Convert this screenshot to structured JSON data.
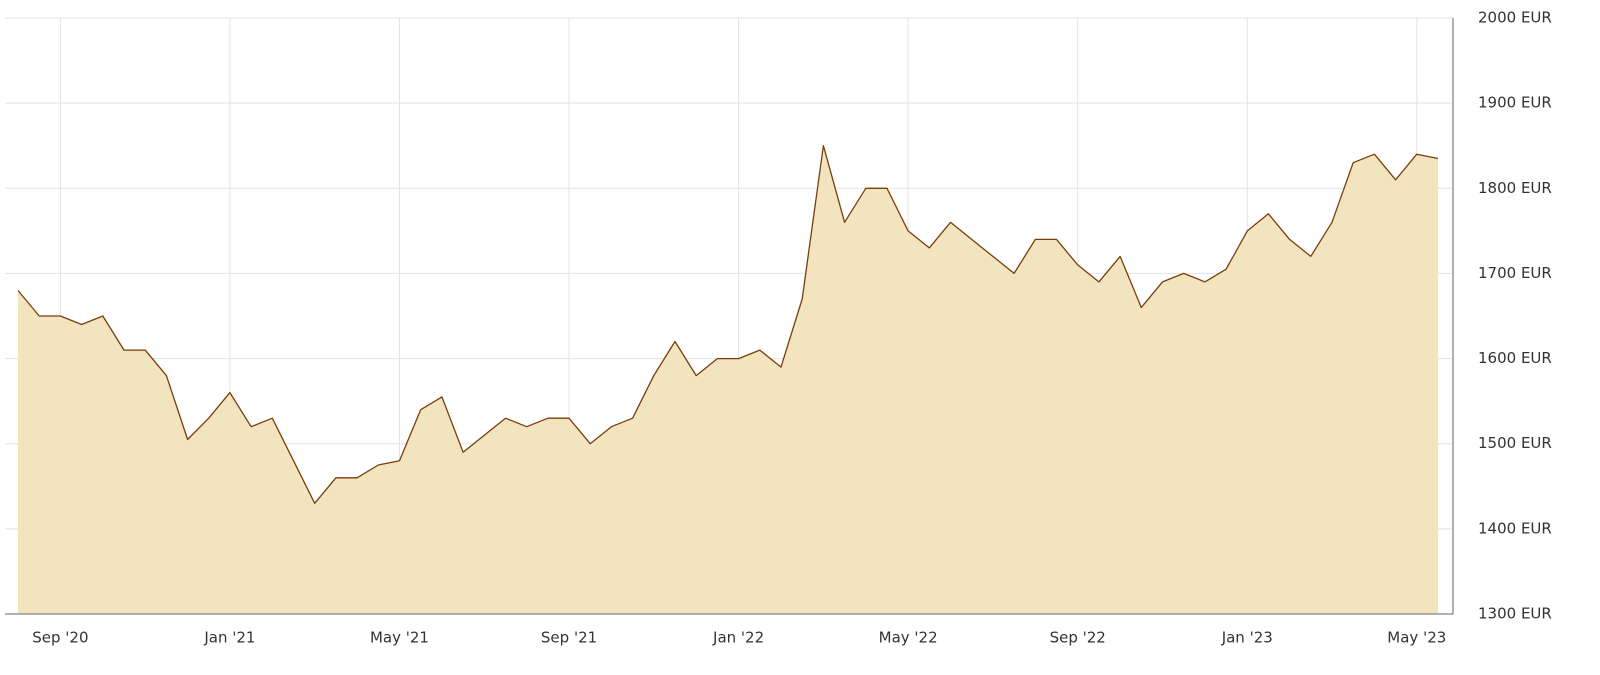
{
  "chart_data": {
    "type": "area",
    "categories": [
      null,
      null,
      "Sep '20",
      null,
      null,
      null,
      null,
      null,
      null,
      null,
      "Jan '21",
      null,
      null,
      null,
      null,
      null,
      null,
      null,
      "May '21",
      null,
      null,
      null,
      null,
      null,
      null,
      null,
      "Sep '21",
      null,
      null,
      null,
      null,
      null,
      null,
      null,
      "Jan '22",
      null,
      null,
      null,
      null,
      null,
      null,
      null,
      "May '22",
      null,
      null,
      null,
      null,
      null,
      null,
      null,
      "Sep '22",
      null,
      null,
      null,
      null,
      null,
      null,
      null,
      "Jan '23",
      null,
      null,
      null,
      null,
      null,
      null,
      null,
      "May '23",
      null
    ],
    "values": [
      1680,
      1650,
      1650,
      1640,
      1650,
      1610,
      1610,
      1580,
      1505,
      1530,
      1560,
      1520,
      1530,
      1480,
      1430,
      1460,
      1460,
      1475,
      1480,
      1540,
      1555,
      1490,
      1510,
      1530,
      1520,
      1530,
      1530,
      1500,
      1520,
      1530,
      1580,
      1620,
      1580,
      1600,
      1600,
      1610,
      1590,
      1670,
      1850,
      1760,
      1800,
      1800,
      1750,
      1730,
      1760,
      1740,
      1720,
      1700,
      1740,
      1740,
      1710,
      1690,
      1720,
      1660,
      1690,
      1700,
      1690,
      1705,
      1750,
      1770,
      1740,
      1720,
      1760,
      1830,
      1840,
      1810,
      1840,
      1835
    ],
    "color": "#7a3d0a",
    "fill": "#f3e4c0",
    "ylim": [
      1300,
      2000
    ],
    "yticks": [
      {
        "value": 1300,
        "label": "1300 EUR"
      },
      {
        "value": 1400,
        "label": "1400 EUR"
      },
      {
        "value": 1500,
        "label": "1500 EUR"
      },
      {
        "value": 1600,
        "label": "1600 EUR"
      },
      {
        "value": 1700,
        "label": "1700 EUR"
      },
      {
        "value": 1800,
        "label": "1800 EUR"
      },
      {
        "value": 1900,
        "label": "1900 EUR"
      },
      {
        "value": 2000,
        "label": "2000 EUR"
      }
    ],
    "grid": true
  }
}
